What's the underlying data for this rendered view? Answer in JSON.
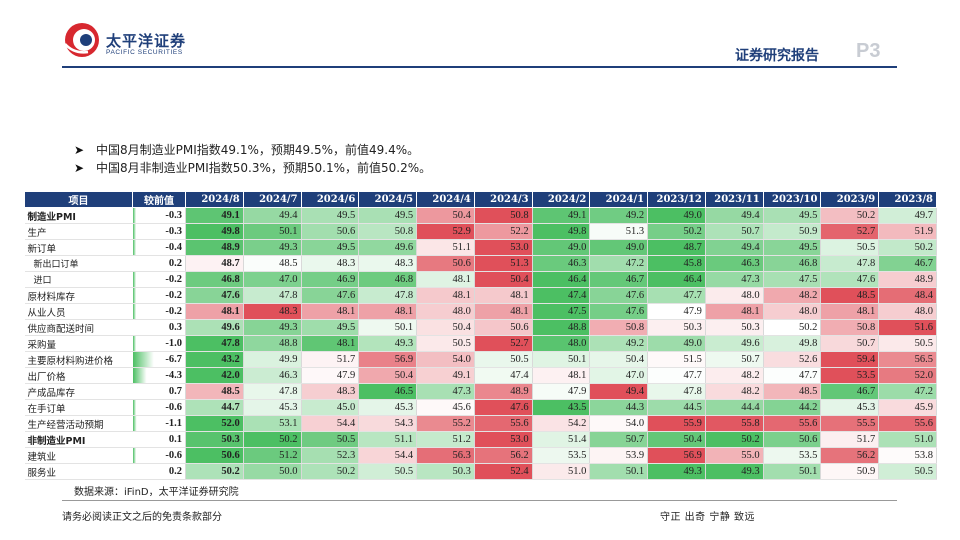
{
  "header": {
    "company_cn": "太平洋证券",
    "company_en": "PACIFIC SECURITIES",
    "report_title": "证券研究报告",
    "page_number": "P3"
  },
  "bullets": [
    "中国8月制造业PMI指数49.1%，预期49.5%，前值49.4%。",
    "中国8月非制造业PMI指数50.3%，预期50.1%，前值50.2%。"
  ],
  "table": {
    "columns": [
      "项目",
      "较前值",
      "2024/8",
      "2024/7",
      "2024/6",
      "2024/5",
      "2024/4",
      "2024/3",
      "2024/2",
      "2024/1",
      "2023/12",
      "2023/11",
      "2023/10",
      "2023/9",
      "2023/8"
    ],
    "rows": [
      {
        "label": "制造业PMI",
        "kind": "head",
        "change": "-0.3",
        "values": [
          "49.1",
          "49.4",
          "49.5",
          "49.5",
          "50.4",
          "50.8",
          "49.1",
          "49.2",
          "49.0",
          "49.4",
          "49.5",
          "50.2",
          "49.7"
        ]
      },
      {
        "label": "生产",
        "kind": "normal",
        "change": "-0.3",
        "values": [
          "49.8",
          "50.1",
          "50.6",
          "50.8",
          "52.9",
          "52.2",
          "49.8",
          "51.3",
          "50.2",
          "50.7",
          "50.9",
          "52.7",
          "51.9"
        ]
      },
      {
        "label": "新订单",
        "kind": "normal",
        "change": "-0.4",
        "values": [
          "48.9",
          "49.3",
          "49.5",
          "49.6",
          "51.1",
          "53.0",
          "49.0",
          "49.0",
          "48.7",
          "49.4",
          "49.5",
          "50.5",
          "50.2"
        ]
      },
      {
        "label": "新出口订单",
        "kind": "sub",
        "change": "0.2",
        "values": [
          "48.7",
          "48.5",
          "48.3",
          "48.3",
          "50.6",
          "51.3",
          "46.3",
          "47.2",
          "45.8",
          "46.3",
          "46.8",
          "47.8",
          "46.7"
        ]
      },
      {
        "label": "进口",
        "kind": "sub",
        "change": "-0.2",
        "values": [
          "46.8",
          "47.0",
          "46.9",
          "46.8",
          "48.1",
          "50.4",
          "46.4",
          "46.7",
          "46.4",
          "47.3",
          "47.5",
          "47.6",
          "48.9"
        ]
      },
      {
        "label": "原材料库存",
        "kind": "normal",
        "change": "-0.2",
        "values": [
          "47.6",
          "47.8",
          "47.6",
          "47.8",
          "48.1",
          "48.1",
          "47.4",
          "47.6",
          "47.7",
          "48.0",
          "48.2",
          "48.5",
          "48.4"
        ]
      },
      {
        "label": "从业人员",
        "kind": "normal",
        "change": "-0.2",
        "values": [
          "48.1",
          "48.3",
          "48.1",
          "48.1",
          "48.0",
          "48.1",
          "47.5",
          "47.6",
          "47.9",
          "48.1",
          "48.0",
          "48.1",
          "48.0"
        ]
      },
      {
        "label": "供应商配送时间",
        "kind": "normal",
        "change": "0.3",
        "values": [
          "49.6",
          "49.3",
          "49.5",
          "50.1",
          "50.4",
          "50.6",
          "48.8",
          "50.8",
          "50.3",
          "50.3",
          "50.2",
          "50.8",
          "51.6"
        ]
      },
      {
        "label": "采购量",
        "kind": "normal",
        "change": "-1.0",
        "values": [
          "47.8",
          "48.8",
          "48.1",
          "49.3",
          "50.5",
          "52.7",
          "48.0",
          "49.2",
          "49.0",
          "49.6",
          "49.8",
          "50.7",
          "50.5"
        ]
      },
      {
        "label": "主要原材料购进价格",
        "kind": "normal",
        "change": "-6.7",
        "values": [
          "43.2",
          "49.9",
          "51.7",
          "56.9",
          "54.0",
          "50.5",
          "50.1",
          "50.4",
          "51.5",
          "50.7",
          "52.6",
          "59.4",
          "56.5"
        ]
      },
      {
        "label": "出厂价格",
        "kind": "normal",
        "change": "-4.3",
        "values": [
          "42.0",
          "46.3",
          "47.9",
          "50.4",
          "49.1",
          "47.4",
          "48.1",
          "47.0",
          "47.7",
          "48.2",
          "47.7",
          "53.5",
          "52.0"
        ]
      },
      {
        "label": "产成品库存",
        "kind": "normal",
        "change": "0.7",
        "values": [
          "48.5",
          "47.8",
          "48.3",
          "46.5",
          "47.3",
          "48.9",
          "47.9",
          "49.4",
          "47.8",
          "48.2",
          "48.5",
          "46.7",
          "47.2"
        ]
      },
      {
        "label": "在手订单",
        "kind": "normal",
        "change": "-0.6",
        "values": [
          "44.7",
          "45.3",
          "45.0",
          "45.3",
          "45.6",
          "47.6",
          "43.5",
          "44.3",
          "44.5",
          "44.4",
          "44.2",
          "45.3",
          "45.9"
        ]
      },
      {
        "label": "生产经营活动预期",
        "kind": "normal",
        "change": "-1.1",
        "values": [
          "52.0",
          "53.1",
          "54.4",
          "54.3",
          "55.2",
          "55.6",
          "54.2",
          "54.0",
          "55.9",
          "55.8",
          "55.6",
          "55.5",
          "55.6"
        ]
      },
      {
        "label": "非制造业PMI",
        "kind": "head",
        "change": "0.1",
        "values": [
          "50.3",
          "50.2",
          "50.5",
          "51.1",
          "51.2",
          "53.0",
          "51.4",
          "50.7",
          "50.4",
          "50.2",
          "50.6",
          "51.7",
          "51.0"
        ]
      },
      {
        "label": "建筑业",
        "kind": "normal",
        "change": "-0.6",
        "values": [
          "50.6",
          "51.2",
          "52.3",
          "54.4",
          "56.3",
          "56.2",
          "53.5",
          "53.9",
          "56.9",
          "55.0",
          "53.5",
          "56.2",
          "53.8"
        ]
      },
      {
        "label": "服务业",
        "kind": "normal",
        "change": "0.2",
        "values": [
          "50.2",
          "50.0",
          "50.2",
          "50.5",
          "50.3",
          "52.4",
          "51.0",
          "50.1",
          "49.3",
          "49.3",
          "50.1",
          "50.9",
          "50.5"
        ]
      }
    ]
  },
  "source": "数据来源：iFinD，太平洋证券研究院",
  "footer": {
    "disclaimer": "请务必阅读正文之后的免责条款部分",
    "motto": "守正 出奇 宁静 致远"
  },
  "colors": {
    "brand": "#1f3f7a",
    "high": "#e0505a",
    "low": "#4cbf63",
    "change_bar": "#4cbf63"
  }
}
